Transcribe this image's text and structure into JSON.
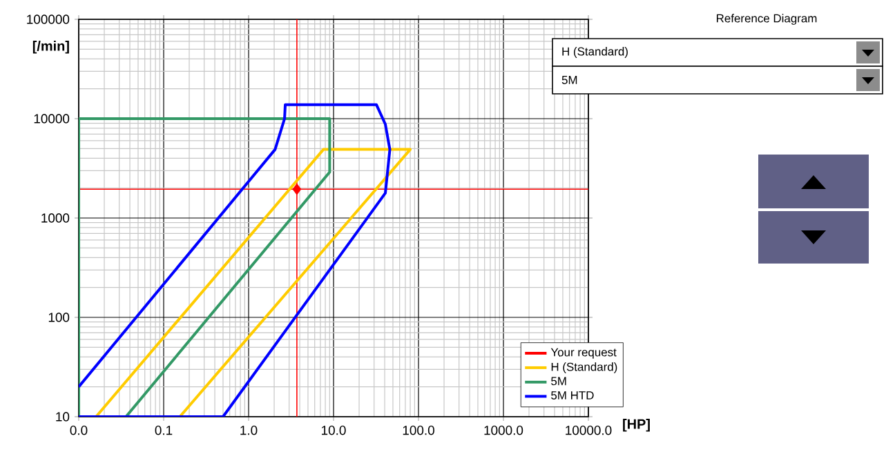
{
  "chart_data": {
    "type": "line",
    "xlabel": "[HP]",
    "ylabel": "[/min]",
    "xlim": [
      0.01,
      10000
    ],
    "ylim": [
      10,
      100000
    ],
    "xticks": [
      {
        "value": 0.01,
        "label": "0.0"
      },
      {
        "value": 0.1,
        "label": "0.1"
      },
      {
        "value": 1,
        "label": "1.0"
      },
      {
        "value": 10,
        "label": "10.0"
      },
      {
        "value": 100,
        "label": "100.0"
      },
      {
        "value": 1000,
        "label": "1000.0"
      },
      {
        "value": 10000,
        "label": "10000.0"
      }
    ],
    "yticks": [
      10,
      100,
      1000,
      10000,
      100000
    ],
    "log": "xy",
    "grid": true,
    "legend": "bottom right",
    "series": [
      {
        "name": "Your request",
        "type": "scatter",
        "marker": "diamond",
        "color": "#ff0000",
        "x": [
          3.7
        ],
        "values": [
          1950
        ]
      },
      {
        "name": "H (Standard)",
        "color": "#ffcc00",
        "x": [
          0.016,
          7.6,
          80,
          0.155
        ],
        "values": [
          10,
          4900,
          4900,
          10
        ]
      },
      {
        "name": "5M",
        "color": "#339966",
        "x": [
          0.01,
          0.01,
          9,
          9,
          0.036
        ],
        "values": [
          10,
          10000,
          10000,
          2900,
          10
        ]
      },
      {
        "name": "5M HTD",
        "color": "#0000ff",
        "x": [
          0.01,
          0.5,
          40.7,
          46,
          40.7,
          32,
          2.7,
          2.65,
          2.05,
          0.01
        ],
        "values": [
          10,
          10,
          1780,
          4900,
          8800,
          13800,
          13800,
          10000,
          4900,
          20
        ]
      }
    ],
    "ref_lines": [
      {
        "axis": "x",
        "value": 3.7,
        "color": "#ff0000"
      },
      {
        "axis": "y",
        "value": 1950,
        "color": "#ff0000"
      }
    ],
    "annotations": [
      "Reference Diagram",
      "H (Standard)",
      "5M"
    ]
  }
}
